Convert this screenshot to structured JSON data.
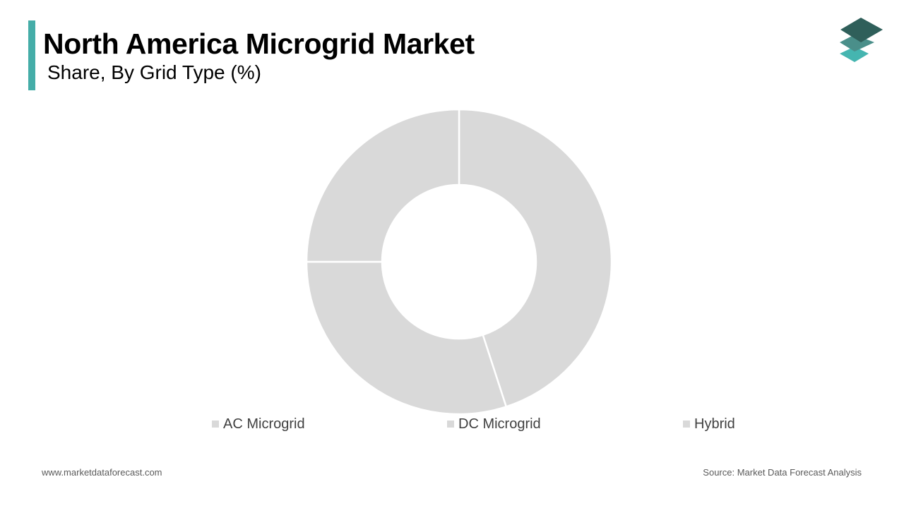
{
  "header": {
    "title": "North America Microgrid Market",
    "subtitle": "Share, By Grid Type (%)"
  },
  "colors": {
    "accent": "#45ada8",
    "slice": "#d9d9d9",
    "slice_border": "#ffffff",
    "logo_top": "#2f5f5a",
    "logo_middle": "#4a8f8a",
    "logo_bottom": "#45b5b0"
  },
  "logo": {
    "icon": "stacked-layers-icon"
  },
  "chart_data": {
    "type": "pie",
    "variant": "donut",
    "categories": [
      "AC Microgrid",
      "DC Microgrid",
      "Hybrid"
    ],
    "values": [
      45,
      30,
      25
    ],
    "legend_position": "bottom"
  },
  "footer": {
    "website": "www.marketdataforecast.com",
    "source": "Source: Market Data Forecast Analysis"
  }
}
